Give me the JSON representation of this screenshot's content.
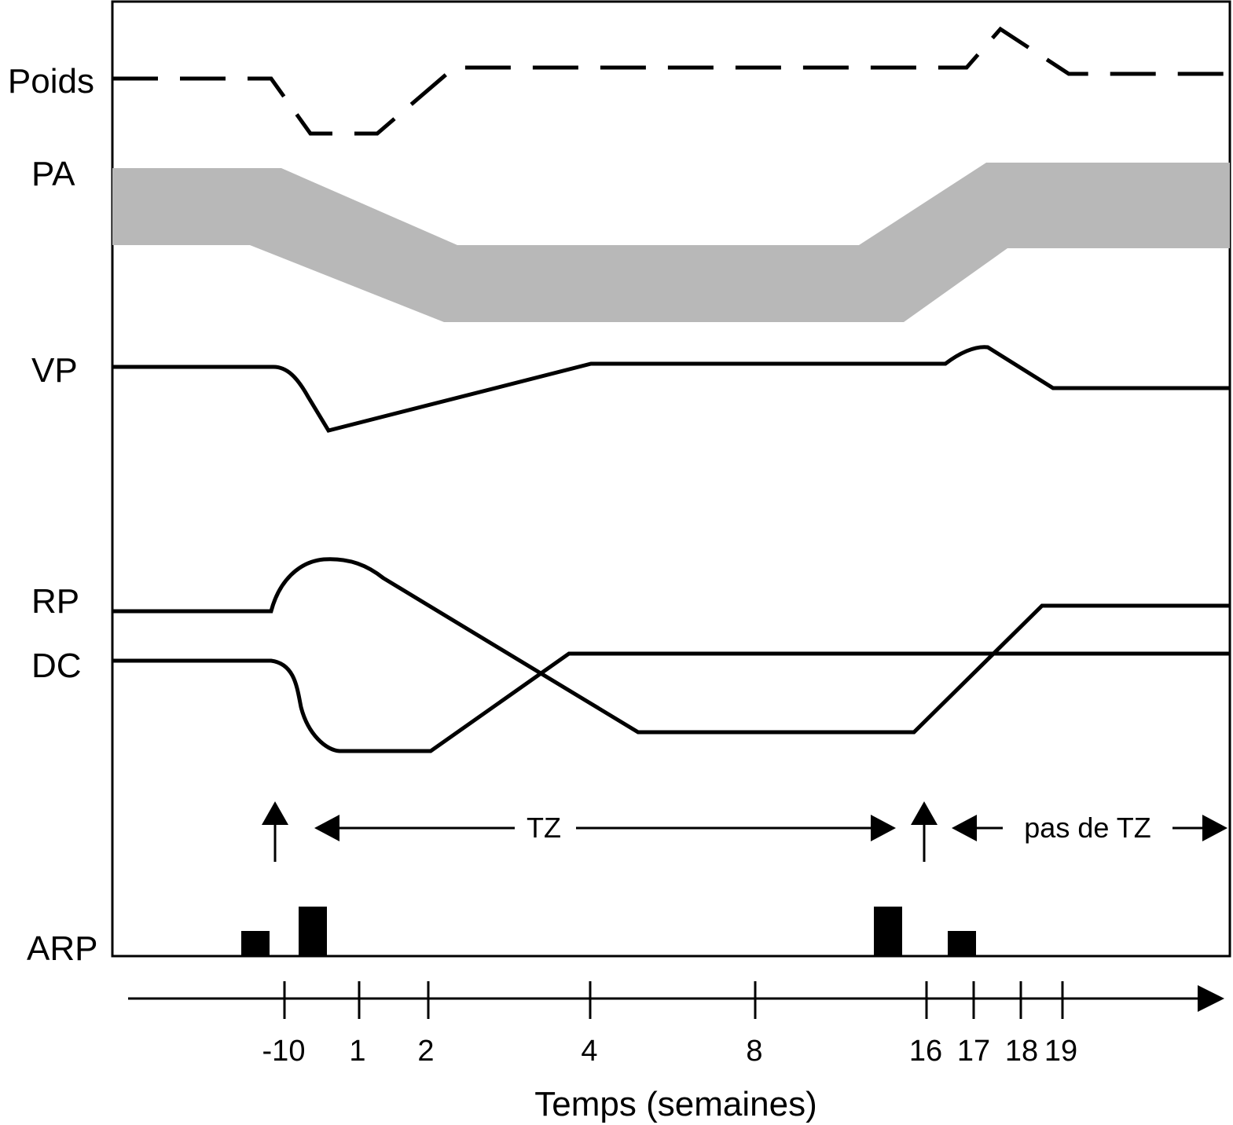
{
  "chart_data": {
    "type": "line",
    "title": "",
    "xlabel": "Temps (semaines)",
    "x_ticks": [
      "-10",
      "1",
      "2",
      "4",
      "8",
      "16",
      "17",
      "18",
      "19"
    ],
    "series": [
      {
        "name": "Poids",
        "style": "dashed"
      },
      {
        "name": "PA",
        "style": "band",
        "color": "#b8b8b8"
      },
      {
        "name": "VP",
        "style": "solid"
      },
      {
        "name": "RP",
        "style": "solid"
      },
      {
        "name": "DC",
        "style": "solid"
      },
      {
        "name": "ARP",
        "style": "bars"
      }
    ],
    "annotations": {
      "range_tz": "TZ",
      "range_no_tz": "pas de TZ"
    },
    "colors": {
      "ink": "#000000",
      "band": "#b8b8b8"
    }
  }
}
